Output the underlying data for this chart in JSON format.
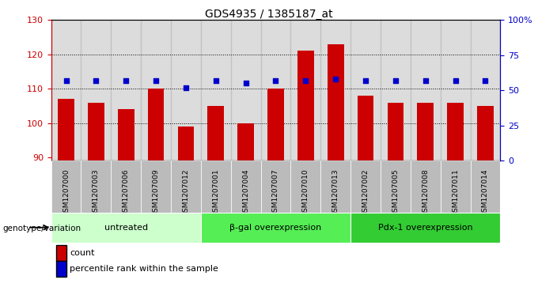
{
  "title": "GDS4935 / 1385187_at",
  "samples": [
    "GSM1207000",
    "GSM1207003",
    "GSM1207006",
    "GSM1207009",
    "GSM1207012",
    "GSM1207001",
    "GSM1207004",
    "GSM1207007",
    "GSM1207010",
    "GSM1207013",
    "GSM1207002",
    "GSM1207005",
    "GSM1207008",
    "GSM1207011",
    "GSM1207014"
  ],
  "counts": [
    107,
    106,
    104,
    110,
    99,
    105,
    100,
    110,
    121,
    123,
    108,
    106,
    106,
    106,
    105
  ],
  "percentiles": [
    57,
    57,
    57,
    57,
    52,
    57,
    55,
    57,
    57,
    58,
    57,
    57,
    57,
    57,
    57
  ],
  "groups": [
    {
      "label": "untreated",
      "start": 0,
      "end": 5,
      "color": "#ccffcc"
    },
    {
      "label": "β-gal overexpression",
      "start": 5,
      "end": 10,
      "color": "#55ee55"
    },
    {
      "label": "Pdx-1 overexpression",
      "start": 10,
      "end": 15,
      "color": "#33cc33"
    }
  ],
  "ylim_left": [
    89,
    130
  ],
  "ylim_right": [
    0,
    100
  ],
  "yticks_left": [
    90,
    100,
    110,
    120,
    130
  ],
  "yticks_right": [
    0,
    25,
    50,
    75,
    100
  ],
  "bar_color": "#cc0000",
  "dot_color": "#0000cc",
  "bar_bottom": 89,
  "bar_width": 0.55,
  "tick_label_color_left": "#cc0000",
  "tick_label_color_right": "#0000cc",
  "legend_count_color": "#cc0000",
  "legend_pct_color": "#0000cc",
  "col_bg_color": "#bbbbbb"
}
